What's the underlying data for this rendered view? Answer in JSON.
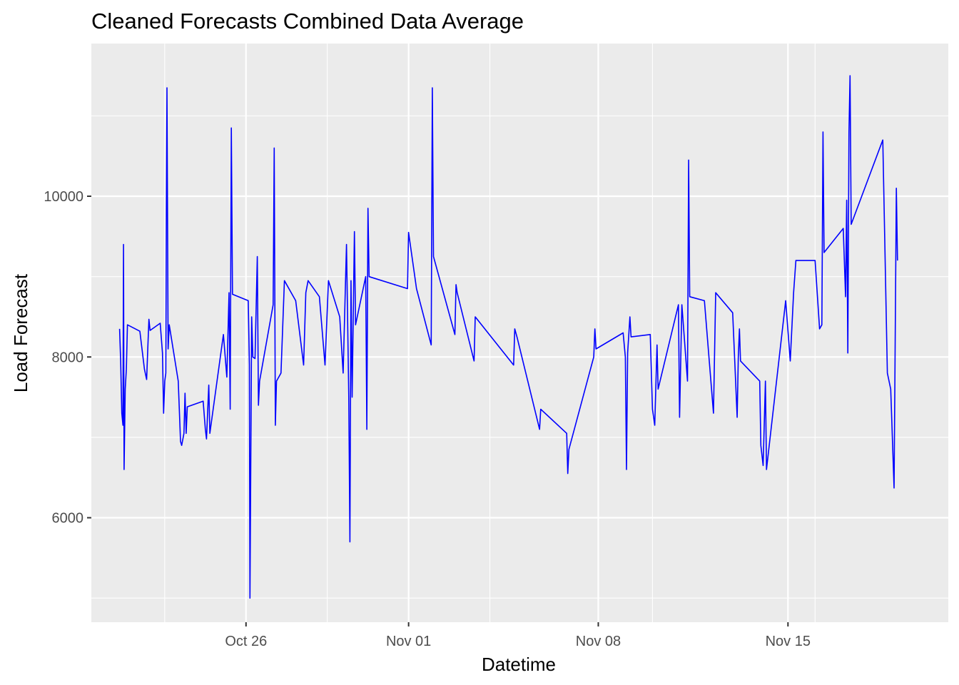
{
  "chart_data": {
    "type": "line",
    "title": "Cleaned Forecasts Combined Data Average",
    "xlabel": "Datetime",
    "ylabel": "Load Forecast",
    "xlim": [
      "2020-10-20T07:00",
      "2020-11-20T22:00"
    ],
    "ylim": [
      4700,
      11900
    ],
    "x_ticks": [
      {
        "date": "2020-10-26",
        "label": "Oct 26"
      },
      {
        "date": "2020-11-01",
        "label": "Nov 01"
      },
      {
        "date": "2020-11-08",
        "label": "Nov 08"
      },
      {
        "date": "2020-11-15",
        "label": "Nov 15"
      }
    ],
    "y_ticks": [
      6000,
      8000,
      10000
    ],
    "grid": true,
    "background": "#ebebeb",
    "gridline_color": "#ffffff",
    "line_color": "#0000ff",
    "series": [
      {
        "points": [
          [
            "2020-10-21T08:00",
            8350
          ],
          [
            "2020-10-21T09:00",
            7950
          ],
          [
            "2020-10-21T10:00",
            7300
          ],
          [
            "2020-10-21T11:00",
            7150
          ],
          [
            "2020-10-21T11:30",
            9400
          ],
          [
            "2020-10-21T12:00",
            6600
          ],
          [
            "2020-10-21T13:00",
            7600
          ],
          [
            "2020-10-21T14:00",
            7850
          ],
          [
            "2020-10-21T15:00",
            8400
          ],
          [
            "2020-10-22T02:00",
            8320
          ],
          [
            "2020-10-22T06:00",
            7850
          ],
          [
            "2020-10-22T08:00",
            7720
          ],
          [
            "2020-10-22T09:00",
            8100
          ],
          [
            "2020-10-22T10:00",
            8470
          ],
          [
            "2020-10-22T11:00",
            8330
          ],
          [
            "2020-10-22T20:00",
            8420
          ],
          [
            "2020-10-22T22:00",
            8050
          ],
          [
            "2020-10-22T23:00",
            7300
          ],
          [
            "2020-10-23T00:00",
            7700
          ],
          [
            "2020-10-23T01:00",
            7800
          ],
          [
            "2020-10-23T01:30",
            9800
          ],
          [
            "2020-10-23T02:00",
            11350
          ],
          [
            "2020-10-23T03:00",
            8100
          ],
          [
            "2020-10-23T04:00",
            8400
          ],
          [
            "2020-10-23T12:00",
            7700
          ],
          [
            "2020-10-23T14:00",
            6950
          ],
          [
            "2020-10-23T15:00",
            6900
          ],
          [
            "2020-10-23T17:00",
            7050
          ],
          [
            "2020-10-23T18:00",
            7550
          ],
          [
            "2020-10-23T19:00",
            7050
          ],
          [
            "2020-10-23T20:00",
            7380
          ],
          [
            "2020-10-24T10:00",
            7450
          ],
          [
            "2020-10-24T12:00",
            7100
          ],
          [
            "2020-10-24T13:00",
            6980
          ],
          [
            "2020-10-24T15:00",
            7650
          ],
          [
            "2020-10-24T16:00",
            7050
          ],
          [
            "2020-10-25T04:00",
            8280
          ],
          [
            "2020-10-25T07:00",
            7750
          ],
          [
            "2020-10-25T09:00",
            8800
          ],
          [
            "2020-10-25T10:00",
            7350
          ],
          [
            "2020-10-25T11:00",
            10850
          ],
          [
            "2020-10-25T12:00",
            8780
          ],
          [
            "2020-10-26T02:00",
            8700
          ],
          [
            "2020-10-26T03:00",
            7900
          ],
          [
            "2020-10-26T03:30",
            5000
          ],
          [
            "2020-10-26T05:00",
            8500
          ],
          [
            "2020-10-26T06:00",
            8000
          ],
          [
            "2020-10-26T08:00",
            7980
          ],
          [
            "2020-10-26T10:00",
            9250
          ],
          [
            "2020-10-26T11:00",
            7400
          ],
          [
            "2020-10-26T12:00",
            7700
          ],
          [
            "2020-10-27T00:00",
            8650
          ],
          [
            "2020-10-27T01:00",
            10600
          ],
          [
            "2020-10-27T02:00",
            7150
          ],
          [
            "2020-10-27T03:00",
            7700
          ],
          [
            "2020-10-27T07:00",
            7800
          ],
          [
            "2020-10-27T10:00",
            8950
          ],
          [
            "2020-10-27T20:00",
            8700
          ],
          [
            "2020-10-28T03:00",
            7900
          ],
          [
            "2020-10-28T05:00",
            8800
          ],
          [
            "2020-10-28T07:00",
            8950
          ],
          [
            "2020-10-28T17:00",
            8750
          ],
          [
            "2020-10-28T22:00",
            7900
          ],
          [
            "2020-10-29T01:00",
            8950
          ],
          [
            "2020-10-29T11:00",
            8500
          ],
          [
            "2020-10-29T14:00",
            7800
          ],
          [
            "2020-10-29T17:00",
            9400
          ],
          [
            "2020-10-29T19:00",
            7500
          ],
          [
            "2020-10-29T20:00",
            5700
          ],
          [
            "2020-10-29T21:00",
            8950
          ],
          [
            "2020-10-29T22:00",
            7500
          ],
          [
            "2020-10-30T00:00",
            9560
          ],
          [
            "2020-10-30T01:00",
            8400
          ],
          [
            "2020-10-30T10:00",
            9000
          ],
          [
            "2020-10-30T11:00",
            7100
          ],
          [
            "2020-10-30T12:00",
            9850
          ],
          [
            "2020-10-30T13:00",
            9000
          ],
          [
            "2020-10-31T23:00",
            8850
          ],
          [
            "2020-11-01T00:00",
            9550
          ],
          [
            "2020-11-01T07:00",
            8850
          ],
          [
            "2020-11-01T20:00",
            8150
          ],
          [
            "2020-11-01T21:00",
            11350
          ],
          [
            "2020-11-01T22:00",
            9250
          ],
          [
            "2020-11-02T17:00",
            8280
          ],
          [
            "2020-11-02T18:00",
            8900
          ],
          [
            "2020-11-02T19:00",
            8800
          ],
          [
            "2020-11-03T10:00",
            7950
          ],
          [
            "2020-11-03T11:00",
            8500
          ],
          [
            "2020-11-04T21:00",
            7900
          ],
          [
            "2020-11-04T22:00",
            8350
          ],
          [
            "2020-11-05T00:00",
            8250
          ],
          [
            "2020-11-05T20:00",
            7100
          ],
          [
            "2020-11-05T21:00",
            7350
          ],
          [
            "2020-11-06T20:00",
            7050
          ],
          [
            "2020-11-06T21:00",
            6550
          ],
          [
            "2020-11-06T22:00",
            6850
          ],
          [
            "2020-11-07T20:00",
            8000
          ],
          [
            "2020-11-07T21:00",
            8350
          ],
          [
            "2020-11-07T22:00",
            8100
          ],
          [
            "2020-11-08T22:00",
            8300
          ],
          [
            "2020-11-09T00:00",
            8000
          ],
          [
            "2020-11-09T01:00",
            6600
          ],
          [
            "2020-11-09T02:00",
            8050
          ],
          [
            "2020-11-09T04:00",
            8500
          ],
          [
            "2020-11-09T05:00",
            8250
          ],
          [
            "2020-11-09T22:00",
            8280
          ],
          [
            "2020-11-10T00:00",
            7350
          ],
          [
            "2020-11-10T02:00",
            7150
          ],
          [
            "2020-11-10T04:00",
            8150
          ],
          [
            "2020-11-10T05:00",
            7600
          ],
          [
            "2020-11-10T23:00",
            8650
          ],
          [
            "2020-11-11T00:00",
            7250
          ],
          [
            "2020-11-11T02:00",
            8650
          ],
          [
            "2020-11-11T07:00",
            7700
          ],
          [
            "2020-11-11T08:00",
            10450
          ],
          [
            "2020-11-11T09:00",
            8750
          ],
          [
            "2020-11-11T22:00",
            8700
          ],
          [
            "2020-11-12T06:00",
            7300
          ],
          [
            "2020-11-12T08:00",
            8800
          ],
          [
            "2020-11-12T23:00",
            8550
          ],
          [
            "2020-11-13T03:00",
            7250
          ],
          [
            "2020-11-13T04:00",
            8000
          ],
          [
            "2020-11-13T05:00",
            8350
          ],
          [
            "2020-11-13T06:00",
            7950
          ],
          [
            "2020-11-13T23:00",
            7700
          ],
          [
            "2020-11-14T00:00",
            6900
          ],
          [
            "2020-11-14T02:00",
            6650
          ],
          [
            "2020-11-14T04:00",
            7700
          ],
          [
            "2020-11-14T05:00",
            6600
          ],
          [
            "2020-11-14T22:00",
            8700
          ],
          [
            "2020-11-15T02:00",
            7950
          ],
          [
            "2020-11-15T05:00",
            8800
          ],
          [
            "2020-11-15T07:00",
            9200
          ],
          [
            "2020-11-16T00:00",
            9200
          ],
          [
            "2020-11-16T04:00",
            8350
          ],
          [
            "2020-11-16T06:00",
            8400
          ],
          [
            "2020-11-16T07:00",
            10800
          ],
          [
            "2020-11-16T08:00",
            9300
          ],
          [
            "2020-11-17T01:00",
            9600
          ],
          [
            "2020-11-17T03:00",
            8750
          ],
          [
            "2020-11-17T04:00",
            9950
          ],
          [
            "2020-11-17T05:00",
            8050
          ],
          [
            "2020-11-17T06:00",
            10800
          ],
          [
            "2020-11-17T07:00",
            11500
          ],
          [
            "2020-11-17T08:00",
            9650
          ],
          [
            "2020-11-18T12:00",
            10700
          ],
          [
            "2020-11-18T16:00",
            7800
          ],
          [
            "2020-11-18T19:00",
            7600
          ],
          [
            "2020-11-18T22:00",
            6370
          ],
          [
            "2020-11-19T00:00",
            10100
          ],
          [
            "2020-11-19T01:00",
            9200
          ]
        ]
      }
    ]
  }
}
